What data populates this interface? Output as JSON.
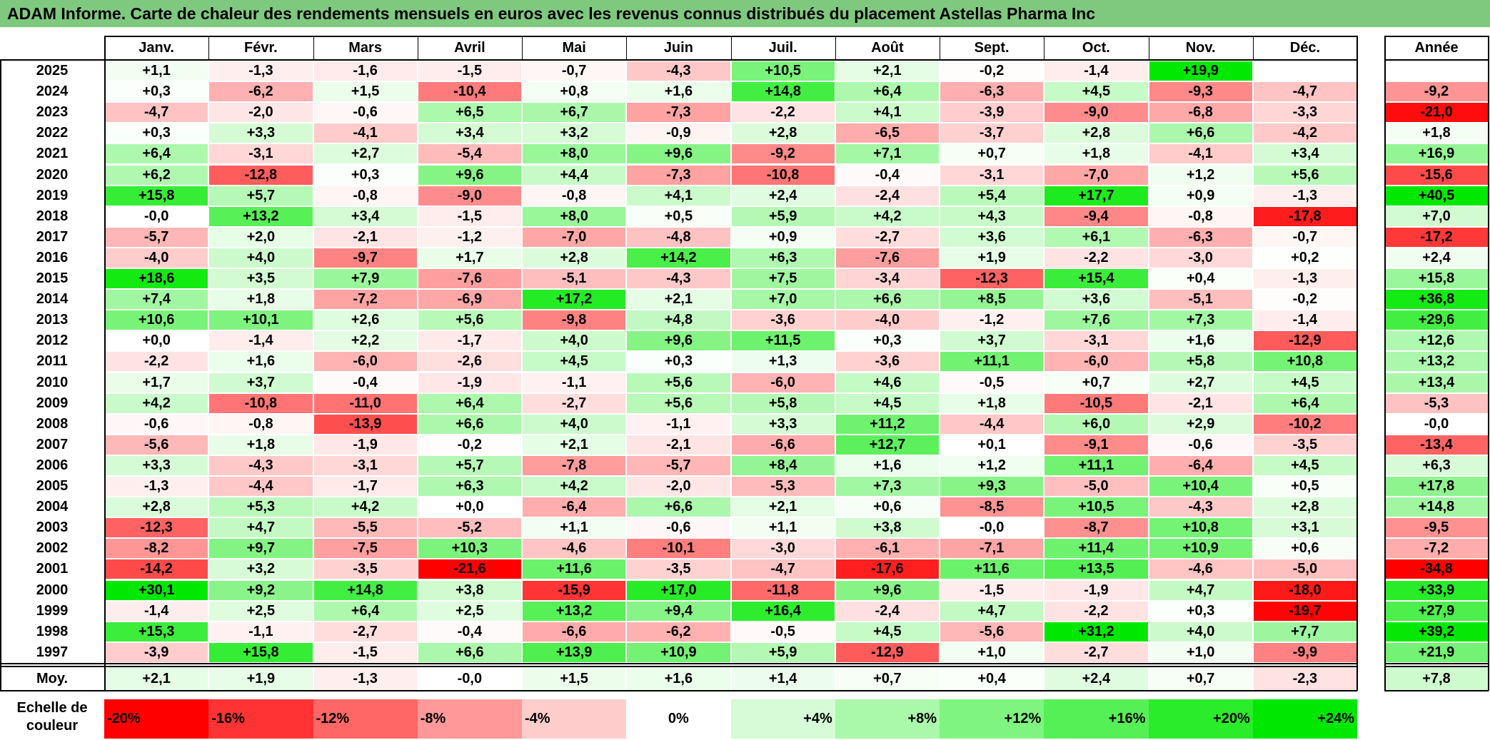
{
  "title": "ADAM Informe. Carte de chaleur des rendements mensuels en euros avec les revenus connus distribués du placement Astellas Pharma Inc",
  "chart_data": {
    "type": "heatmap",
    "title": "ADAM Informe. Carte de chaleur des rendements mensuels en euros avec les revenus connus distribués du placement Astellas Pharma Inc",
    "columns": [
      "Janv.",
      "Févr.",
      "Mars",
      "Avril",
      "Mai",
      "Juin",
      "Juil.",
      "Août",
      "Sept.",
      "Oct.",
      "Nov.",
      "Déc."
    ],
    "year_column_label": "Année",
    "rows": [
      {
        "year": "2025",
        "months": [
          "+1,1",
          "-1,3",
          "-1,6",
          "-1,5",
          "-0,7",
          "-4,3",
          "+10,5",
          "+2,1",
          "-0,2",
          "-1,4",
          "+19,9",
          ""
        ],
        "annual": ""
      },
      {
        "year": "2024",
        "months": [
          "+0,3",
          "-6,2",
          "+1,5",
          "-10,4",
          "+0,8",
          "+1,6",
          "+14,8",
          "+6,4",
          "-6,3",
          "+4,5",
          "-9,3",
          "-4,7"
        ],
        "annual": "-9,2"
      },
      {
        "year": "2023",
        "months": [
          "-4,7",
          "-2,0",
          "-0,6",
          "+6,5",
          "+6,7",
          "-7,3",
          "-2,2",
          "+4,1",
          "-3,9",
          "-9,0",
          "-6,8",
          "-3,3"
        ],
        "annual": "-21,0"
      },
      {
        "year": "2022",
        "months": [
          "+0,3",
          "+3,3",
          "-4,1",
          "+3,4",
          "+3,2",
          "-0,9",
          "+2,8",
          "-6,5",
          "-3,7",
          "+2,8",
          "+6,6",
          "-4,2"
        ],
        "annual": "+1,8"
      },
      {
        "year": "2021",
        "months": [
          "+6,4",
          "-3,1",
          "+2,7",
          "-5,4",
          "+8,0",
          "+9,6",
          "-9,2",
          "+7,1",
          "+0,7",
          "+1,8",
          "-4,1",
          "+3,4"
        ],
        "annual": "+16,9"
      },
      {
        "year": "2020",
        "months": [
          "+6,2",
          "-12,8",
          "+0,3",
          "+9,6",
          "+4,4",
          "-7,3",
          "-10,8",
          "-0,4",
          "-3,1",
          "-7,0",
          "+1,2",
          "+5,6"
        ],
        "annual": "-15,6"
      },
      {
        "year": "2019",
        "months": [
          "+15,8",
          "+5,7",
          "-0,8",
          "-9,0",
          "-0,8",
          "+4,1",
          "+2,4",
          "-2,4",
          "+5,4",
          "+17,7",
          "+0,9",
          "-1,3"
        ],
        "annual": "+40,5"
      },
      {
        "year": "2018",
        "months": [
          "-0,0",
          "+13,2",
          "+3,4",
          "-1,5",
          "+8,0",
          "+0,5",
          "+5,9",
          "+4,2",
          "+4,3",
          "-9,4",
          "-0,8",
          "-17,8"
        ],
        "annual": "+7,0"
      },
      {
        "year": "2017",
        "months": [
          "-5,7",
          "+2,0",
          "-2,1",
          "-1,2",
          "-7,0",
          "-4,8",
          "+0,9",
          "-2,7",
          "+3,6",
          "+6,1",
          "-6,3",
          "-0,7"
        ],
        "annual": "-17,2"
      },
      {
        "year": "2016",
        "months": [
          "-4,0",
          "+4,0",
          "-9,7",
          "+1,7",
          "+2,8",
          "+14,2",
          "+6,3",
          "-7,6",
          "+1,9",
          "-2,2",
          "-3,0",
          "+0,2"
        ],
        "annual": "+2,4"
      },
      {
        "year": "2015",
        "months": [
          "+18,6",
          "+3,5",
          "+7,9",
          "-7,6",
          "-5,1",
          "-4,3",
          "+7,5",
          "-3,4",
          "-12,3",
          "+15,4",
          "+0,4",
          "-1,3"
        ],
        "annual": "+15,8"
      },
      {
        "year": "2014",
        "months": [
          "+7,4",
          "+1,8",
          "-7,2",
          "-6,9",
          "+17,2",
          "+2,1",
          "+7,0",
          "+6,6",
          "+8,5",
          "+3,6",
          "-5,1",
          "-0,2"
        ],
        "annual": "+36,8"
      },
      {
        "year": "2013",
        "months": [
          "+10,6",
          "+10,1",
          "+2,6",
          "+5,6",
          "-9,8",
          "+4,8",
          "-3,6",
          "-4,0",
          "-1,2",
          "+7,6",
          "+7,3",
          "-1,4"
        ],
        "annual": "+29,6"
      },
      {
        "year": "2012",
        "months": [
          "+0,0",
          "-1,4",
          "+2,2",
          "-1,7",
          "+4,0",
          "+9,6",
          "+11,5",
          "+0,3",
          "+3,7",
          "-3,1",
          "+1,6",
          "-12,9"
        ],
        "annual": "+12,6"
      },
      {
        "year": "2011",
        "months": [
          "-2,2",
          "+1,6",
          "-6,0",
          "-2,6",
          "+4,5",
          "+0,3",
          "+1,3",
          "-3,6",
          "+11,1",
          "-6,0",
          "+5,8",
          "+10,8"
        ],
        "annual": "+13,2"
      },
      {
        "year": "2010",
        "months": [
          "+1,7",
          "+3,7",
          "-0,4",
          "-1,9",
          "-1,1",
          "+5,6",
          "-6,0",
          "+4,6",
          "-0,5",
          "+0,7",
          "+2,7",
          "+4,5"
        ],
        "annual": "+13,4"
      },
      {
        "year": "2009",
        "months": [
          "+4,2",
          "-10,8",
          "-11,0",
          "+6,4",
          "-2,7",
          "+5,6",
          "+5,8",
          "+4,5",
          "+1,8",
          "-10,5",
          "-2,1",
          "+6,4"
        ],
        "annual": "-5,3"
      },
      {
        "year": "2008",
        "months": [
          "-0,6",
          "-0,8",
          "-13,9",
          "+6,6",
          "+4,0",
          "-1,1",
          "+3,3",
          "+11,2",
          "-4,4",
          "+6,0",
          "+2,9",
          "-10,2"
        ],
        "annual": "-0,0"
      },
      {
        "year": "2007",
        "months": [
          "-5,6",
          "+1,8",
          "-1,9",
          "-0,2",
          "+2,1",
          "-2,1",
          "-6,6",
          "+12,7",
          "+0,1",
          "-9,1",
          "-0,6",
          "-3,5"
        ],
        "annual": "-13,4"
      },
      {
        "year": "2006",
        "months": [
          "+3,3",
          "-4,3",
          "-3,1",
          "+5,7",
          "-7,8",
          "-5,7",
          "+8,4",
          "+1,6",
          "+1,2",
          "+11,1",
          "-6,4",
          "+4,5"
        ],
        "annual": "+6,3"
      },
      {
        "year": "2005",
        "months": [
          "-1,3",
          "-4,4",
          "-1,7",
          "+6,3",
          "+4,2",
          "-2,0",
          "-5,3",
          "+7,3",
          "+9,3",
          "-5,0",
          "+10,4",
          "+0,5"
        ],
        "annual": "+17,8"
      },
      {
        "year": "2004",
        "months": [
          "+2,8",
          "+5,3",
          "+4,2",
          "+0,0",
          "-6,4",
          "+6,6",
          "+2,1",
          "+0,6",
          "-8,5",
          "+10,5",
          "-4,3",
          "+2,8"
        ],
        "annual": "+14,8"
      },
      {
        "year": "2003",
        "months": [
          "-12,3",
          "+4,7",
          "-5,5",
          "-5,2",
          "+1,1",
          "-0,6",
          "+1,1",
          "+3,8",
          "-0,0",
          "-8,7",
          "+10,8",
          "+3,1"
        ],
        "annual": "-9,5"
      },
      {
        "year": "2002",
        "months": [
          "-8,2",
          "+9,7",
          "-7,5",
          "+10,3",
          "-4,6",
          "-10,1",
          "-3,0",
          "-6,1",
          "-7,1",
          "+11,4",
          "+10,9",
          "+0,6"
        ],
        "annual": "-7,2"
      },
      {
        "year": "2001",
        "months": [
          "-14,2",
          "+3,2",
          "-3,5",
          "-21,6",
          "+11,6",
          "-3,5",
          "-4,7",
          "-17,6",
          "+11,6",
          "+13,5",
          "-4,6",
          "-5,0"
        ],
        "annual": "-34,8"
      },
      {
        "year": "2000",
        "months": [
          "+30,1",
          "+9,2",
          "+14,8",
          "+3,8",
          "-15,9",
          "+17,0",
          "-11,8",
          "+9,6",
          "-1,5",
          "-1,9",
          "+4,7",
          "-18,0"
        ],
        "annual": "+33,9"
      },
      {
        "year": "1999",
        "months": [
          "-1,4",
          "+2,5",
          "+6,4",
          "+2,5",
          "+13,2",
          "+9,4",
          "+16,4",
          "-2,4",
          "+4,7",
          "-2,2",
          "+0,3",
          "-19,7"
        ],
        "annual": "+27,9"
      },
      {
        "year": "1998",
        "months": [
          "+15,3",
          "-1,1",
          "-2,7",
          "-0,4",
          "-6,6",
          "-6,2",
          "-0,5",
          "+4,5",
          "-5,6",
          "+31,2",
          "+4,0",
          "+7,7"
        ],
        "annual": "+39,2"
      },
      {
        "year": "1997",
        "months": [
          "-3,9",
          "+15,8",
          "-1,5",
          "+6,6",
          "+13,9",
          "+10,9",
          "+5,9",
          "-12,9",
          "+1,0",
          "-2,7",
          "+1,0",
          "-9,9"
        ],
        "annual": "+21,9"
      }
    ],
    "average": {
      "label": "Moy.",
      "months": [
        "+2,1",
        "+1,9",
        "-1,3",
        "-0,0",
        "+1,5",
        "+1,6",
        "+1,4",
        "+0,7",
        "+0,4",
        "+2,4",
        "+0,7",
        "-2,3"
      ],
      "annual": "+7,8"
    },
    "scale": {
      "label": "Echelle de couleur",
      "stops": [
        {
          "label": "-20%",
          "value": -20,
          "color": "#ff0000",
          "align": "left"
        },
        {
          "label": "-16%",
          "value": -16,
          "color": "#ff3333",
          "align": "left"
        },
        {
          "label": "-12%",
          "value": -12,
          "color": "#ff6666",
          "align": "left"
        },
        {
          "label": "-8%",
          "value": -8,
          "color": "#ff9999",
          "align": "left"
        },
        {
          "label": "-4%",
          "value": -4,
          "color": "#ffcccc",
          "align": "left"
        },
        {
          "label": "0%",
          "value": 0,
          "color": "#ffffff",
          "align": "center"
        },
        {
          "label": "+4%",
          "value": 4,
          "color": "#d6fbd6",
          "align": "right"
        },
        {
          "label": "+8%",
          "value": 8,
          "color": "#aaf8aa",
          "align": "right"
        },
        {
          "label": "+12%",
          "value": 12,
          "color": "#80f480",
          "align": "right"
        },
        {
          "label": "+16%",
          "value": 16,
          "color": "#55f055",
          "align": "right"
        },
        {
          "label": "+20%",
          "value": 20,
          "color": "#2aec2a",
          "align": "right"
        },
        {
          "label": "+24%",
          "value": 24,
          "color": "#00e800",
          "align": "right"
        }
      ]
    }
  },
  "colors": {
    "title_bg": "#7fc97f",
    "negative_max": "#ff0000",
    "positive_max": "#00e800",
    "neutral": "#ffffff"
  }
}
